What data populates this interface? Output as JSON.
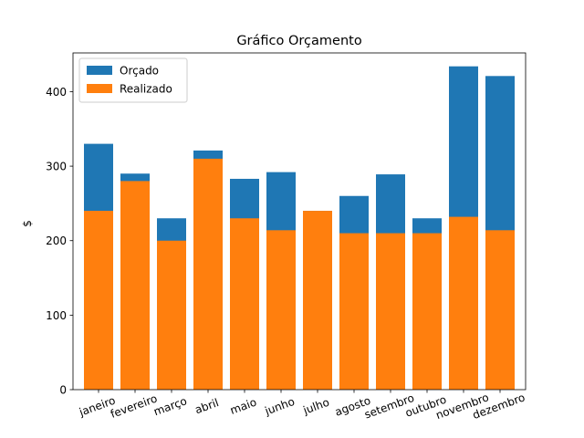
{
  "chart_data": {
    "type": "bar",
    "title": "Gráfico Orçamento",
    "xlabel": "",
    "ylabel": "$",
    "ylim": [
      0,
      452
    ],
    "yticks": [
      0,
      100,
      200,
      300,
      400
    ],
    "categories": [
      "janeiro",
      "fevereiro",
      "março",
      "abril",
      "maio",
      "junho",
      "julho",
      "agosto",
      "setembro",
      "outubro",
      "novembro",
      "dezembro"
    ],
    "series": [
      {
        "name": "Orçado",
        "color": "#1f77b4",
        "values": [
          330,
          290,
          230,
          321,
          283,
          292,
          240,
          260,
          289,
          230,
          434,
          421
        ]
      },
      {
        "name": "Realizado",
        "color": "#ff7f0e",
        "values": [
          240,
          280,
          200,
          310,
          230,
          214,
          240,
          210,
          210,
          210,
          232,
          214
        ]
      }
    ],
    "legend_position": "top-left",
    "grid": false,
    "tick_label_rotation": 20,
    "bars_overlap": true
  }
}
